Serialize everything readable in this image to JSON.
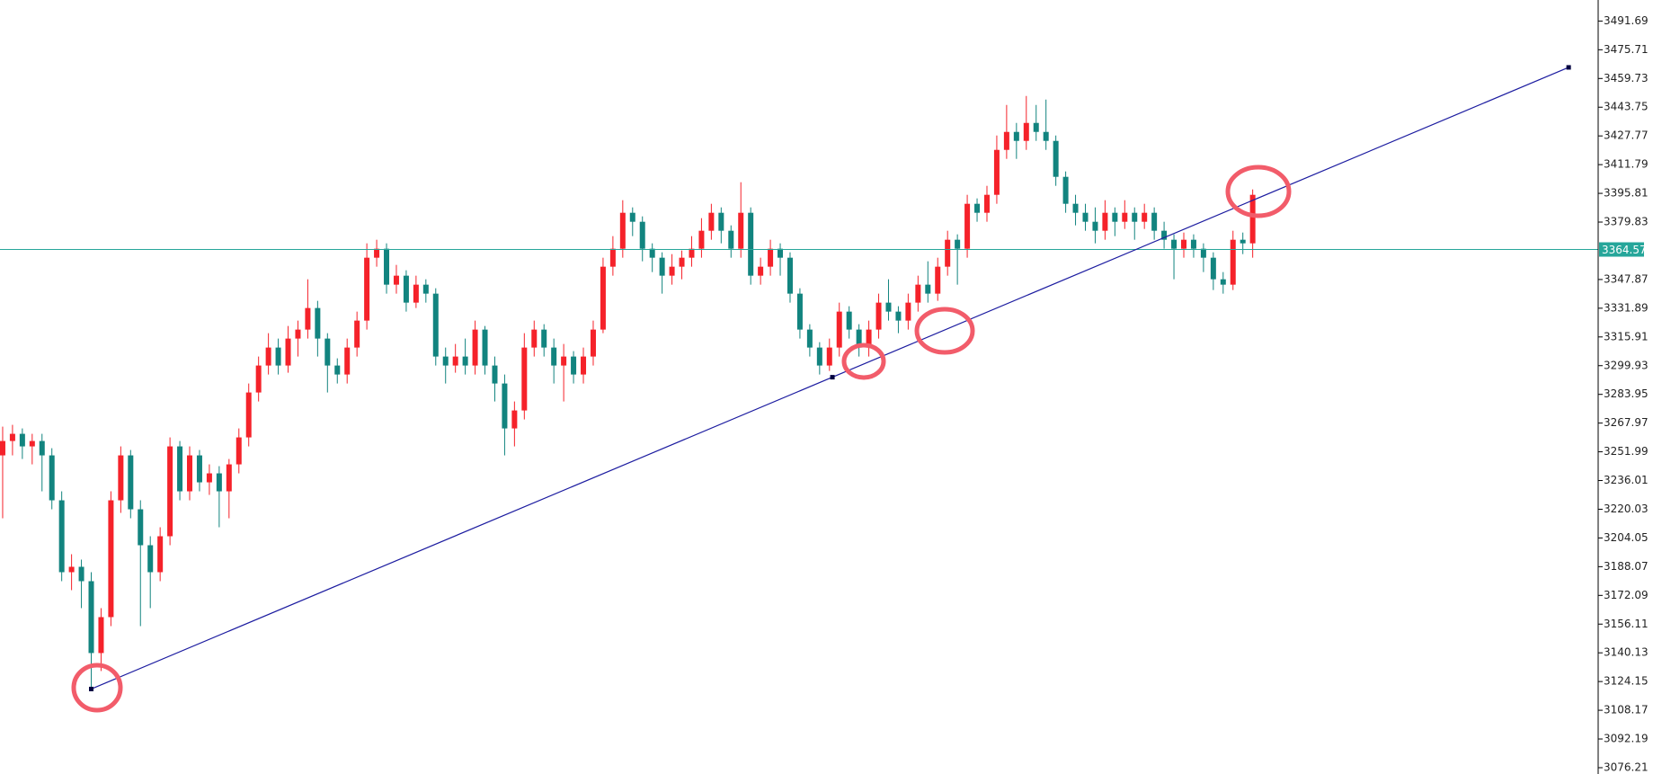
{
  "chart_data": {
    "type": "candlestick",
    "up_color": "#f5222a",
    "down_color": "#12847f",
    "trendline_color": "#1c1ca0",
    "current_color": "#26a69a",
    "ylim": [
      3072.7,
      3503.4
    ],
    "xlim": [
      -0.27,
      162.1
    ],
    "yticks": [
      3491.69,
      3475.71,
      3459.73,
      3443.75,
      3427.77,
      3411.79,
      3395.81,
      3379.83,
      3347.87,
      3331.89,
      3315.91,
      3299.93,
      3283.95,
      3267.97,
      3251.99,
      3236.01,
      3220.03,
      3204.05,
      3188.07,
      3172.09,
      3156.11,
      3140.13,
      3124.15,
      3108.17,
      3092.19,
      3076.21
    ],
    "current_price": 3364.57,
    "trendline": {
      "x": [
        9,
        84.3,
        159.1
      ],
      "y": [
        3120,
        3293.5,
        3465.9
      ]
    },
    "candles": [
      [
        3250,
        3266,
        3215,
        3258
      ],
      [
        3258,
        3267,
        3250,
        3262
      ],
      [
        3262,
        3265,
        3248,
        3255
      ],
      [
        3255,
        3262,
        3245,
        3258
      ],
      [
        3258,
        3262,
        3230,
        3250
      ],
      [
        3250,
        3254,
        3220,
        3225
      ],
      [
        3225,
        3230,
        3180,
        3185
      ],
      [
        3185,
        3195,
        3175,
        3188
      ],
      [
        3188,
        3192,
        3165,
        3180
      ],
      [
        3180,
        3185,
        3120,
        3140
      ],
      [
        3140,
        3165,
        3130,
        3160
      ],
      [
        3160,
        3230,
        3155,
        3225
      ],
      [
        3225,
        3255,
        3218,
        3250
      ],
      [
        3250,
        3253,
        3215,
        3220
      ],
      [
        3220,
        3225,
        3155,
        3200
      ],
      [
        3200,
        3205,
        3165,
        3185
      ],
      [
        3185,
        3210,
        3180,
        3205
      ],
      [
        3205,
        3260,
        3200,
        3255
      ],
      [
        3255,
        3258,
        3225,
        3230
      ],
      [
        3230,
        3255,
        3225,
        3250
      ],
      [
        3250,
        3253,
        3230,
        3235
      ],
      [
        3235,
        3245,
        3228,
        3240
      ],
      [
        3240,
        3244,
        3210,
        3230
      ],
      [
        3230,
        3248,
        3215,
        3245
      ],
      [
        3245,
        3265,
        3240,
        3260
      ],
      [
        3260,
        3290,
        3255,
        3285
      ],
      [
        3285,
        3305,
        3280,
        3300
      ],
      [
        3300,
        3318,
        3295,
        3310
      ],
      [
        3310,
        3315,
        3295,
        3300
      ],
      [
        3300,
        3322,
        3296,
        3315
      ],
      [
        3315,
        3325,
        3305,
        3320
      ],
      [
        3320,
        3348,
        3315,
        3332
      ],
      [
        3332,
        3336,
        3305,
        3315
      ],
      [
        3315,
        3318,
        3285,
        3300
      ],
      [
        3300,
        3304,
        3290,
        3295
      ],
      [
        3295,
        3315,
        3290,
        3310
      ],
      [
        3310,
        3330,
        3305,
        3325
      ],
      [
        3325,
        3368,
        3320,
        3360
      ],
      [
        3360,
        3370,
        3355,
        3365
      ],
      [
        3365,
        3368,
        3340,
        3345
      ],
      [
        3345,
        3356,
        3340,
        3350
      ],
      [
        3350,
        3353,
        3330,
        3335
      ],
      [
        3335,
        3350,
        3332,
        3345
      ],
      [
        3345,
        3348,
        3335,
        3340
      ],
      [
        3340,
        3343,
        3300,
        3305
      ],
      [
        3305,
        3310,
        3290,
        3300
      ],
      [
        3300,
        3312,
        3296,
        3305
      ],
      [
        3305,
        3315,
        3295,
        3300
      ],
      [
        3300,
        3325,
        3295,
        3320
      ],
      [
        3320,
        3322,
        3295,
        3300
      ],
      [
        3300,
        3305,
        3280,
        3290
      ],
      [
        3290,
        3295,
        3250,
        3265
      ],
      [
        3265,
        3280,
        3255,
        3275
      ],
      [
        3275,
        3318,
        3270,
        3310
      ],
      [
        3310,
        3325,
        3305,
        3320
      ],
      [
        3320,
        3323,
        3305,
        3310
      ],
      [
        3310,
        3315,
        3290,
        3300
      ],
      [
        3300,
        3312,
        3280,
        3305
      ],
      [
        3305,
        3308,
        3290,
        3295
      ],
      [
        3295,
        3310,
        3290,
        3305
      ],
      [
        3305,
        3325,
        3300,
        3320
      ],
      [
        3320,
        3360,
        3318,
        3355
      ],
      [
        3355,
        3372,
        3350,
        3365
      ],
      [
        3365,
        3392,
        3360,
        3385
      ],
      [
        3385,
        3388,
        3372,
        3380
      ],
      [
        3380,
        3383,
        3358,
        3365
      ],
      [
        3365,
        3368,
        3352,
        3360
      ],
      [
        3360,
        3363,
        3340,
        3350
      ],
      [
        3350,
        3362,
        3345,
        3355
      ],
      [
        3355,
        3364,
        3348,
        3360
      ],
      [
        3360,
        3372,
        3355,
        3365
      ],
      [
        3365,
        3382,
        3360,
        3375
      ],
      [
        3375,
        3390,
        3370,
        3385
      ],
      [
        3385,
        3388,
        3368,
        3375
      ],
      [
        3375,
        3378,
        3360,
        3365
      ],
      [
        3365,
        3402,
        3360,
        3385
      ],
      [
        3385,
        3388,
        3345,
        3350
      ],
      [
        3350,
        3360,
        3345,
        3355
      ],
      [
        3355,
        3370,
        3350,
        3365
      ],
      [
        3365,
        3368,
        3350,
        3360
      ],
      [
        3360,
        3363,
        3335,
        3340
      ],
      [
        3340,
        3343,
        3315,
        3320
      ],
      [
        3320,
        3323,
        3305,
        3310
      ],
      [
        3310,
        3313,
        3295,
        3300
      ],
      [
        3300,
        3315,
        3297,
        3310
      ],
      [
        3310,
        3335,
        3305,
        3330
      ],
      [
        3330,
        3333,
        3315,
        3320
      ],
      [
        3320,
        3323,
        3305,
        3310
      ],
      [
        3310,
        3325,
        3305,
        3320
      ],
      [
        3320,
        3340,
        3315,
        3335
      ],
      [
        3335,
        3348,
        3325,
        3330
      ],
      [
        3330,
        3333,
        3318,
        3325
      ],
      [
        3325,
        3340,
        3320,
        3335
      ],
      [
        3335,
        3350,
        3330,
        3345
      ],
      [
        3345,
        3358,
        3335,
        3340
      ],
      [
        3340,
        3360,
        3336,
        3355
      ],
      [
        3355,
        3375,
        3350,
        3370
      ],
      [
        3370,
        3373,
        3345,
        3365
      ],
      [
        3365,
        3395,
        3360,
        3390
      ],
      [
        3390,
        3393,
        3380,
        3385
      ],
      [
        3385,
        3400,
        3380,
        3395
      ],
      [
        3395,
        3428,
        3390,
        3420
      ],
      [
        3420,
        3445,
        3415,
        3430
      ],
      [
        3430,
        3435,
        3415,
        3425
      ],
      [
        3425,
        3450,
        3420,
        3435
      ],
      [
        3435,
        3445,
        3425,
        3430
      ],
      [
        3430,
        3448,
        3420,
        3425
      ],
      [
        3425,
        3428,
        3400,
        3405
      ],
      [
        3405,
        3408,
        3385,
        3390
      ],
      [
        3390,
        3395,
        3378,
        3385
      ],
      [
        3385,
        3390,
        3375,
        3380
      ],
      [
        3380,
        3388,
        3368,
        3375
      ],
      [
        3375,
        3392,
        3370,
        3385
      ],
      [
        3385,
        3388,
        3372,
        3380
      ],
      [
        3380,
        3392,
        3376,
        3385
      ],
      [
        3385,
        3388,
        3370,
        3380
      ],
      [
        3380,
        3390,
        3376,
        3385
      ],
      [
        3385,
        3388,
        3370,
        3375
      ],
      [
        3375,
        3380,
        3365,
        3370
      ],
      [
        3370,
        3373,
        3348,
        3365
      ],
      [
        3365,
        3374,
        3360,
        3370
      ],
      [
        3370,
        3373,
        3360,
        3365
      ],
      [
        3365,
        3368,
        3352,
        3360
      ],
      [
        3360,
        3363,
        3342,
        3348
      ],
      [
        3348,
        3352,
        3340,
        3345
      ],
      [
        3345,
        3375,
        3342,
        3370
      ],
      [
        3370,
        3374,
        3362,
        3368
      ],
      [
        3368,
        3398,
        3360,
        3395
      ]
    ]
  }
}
